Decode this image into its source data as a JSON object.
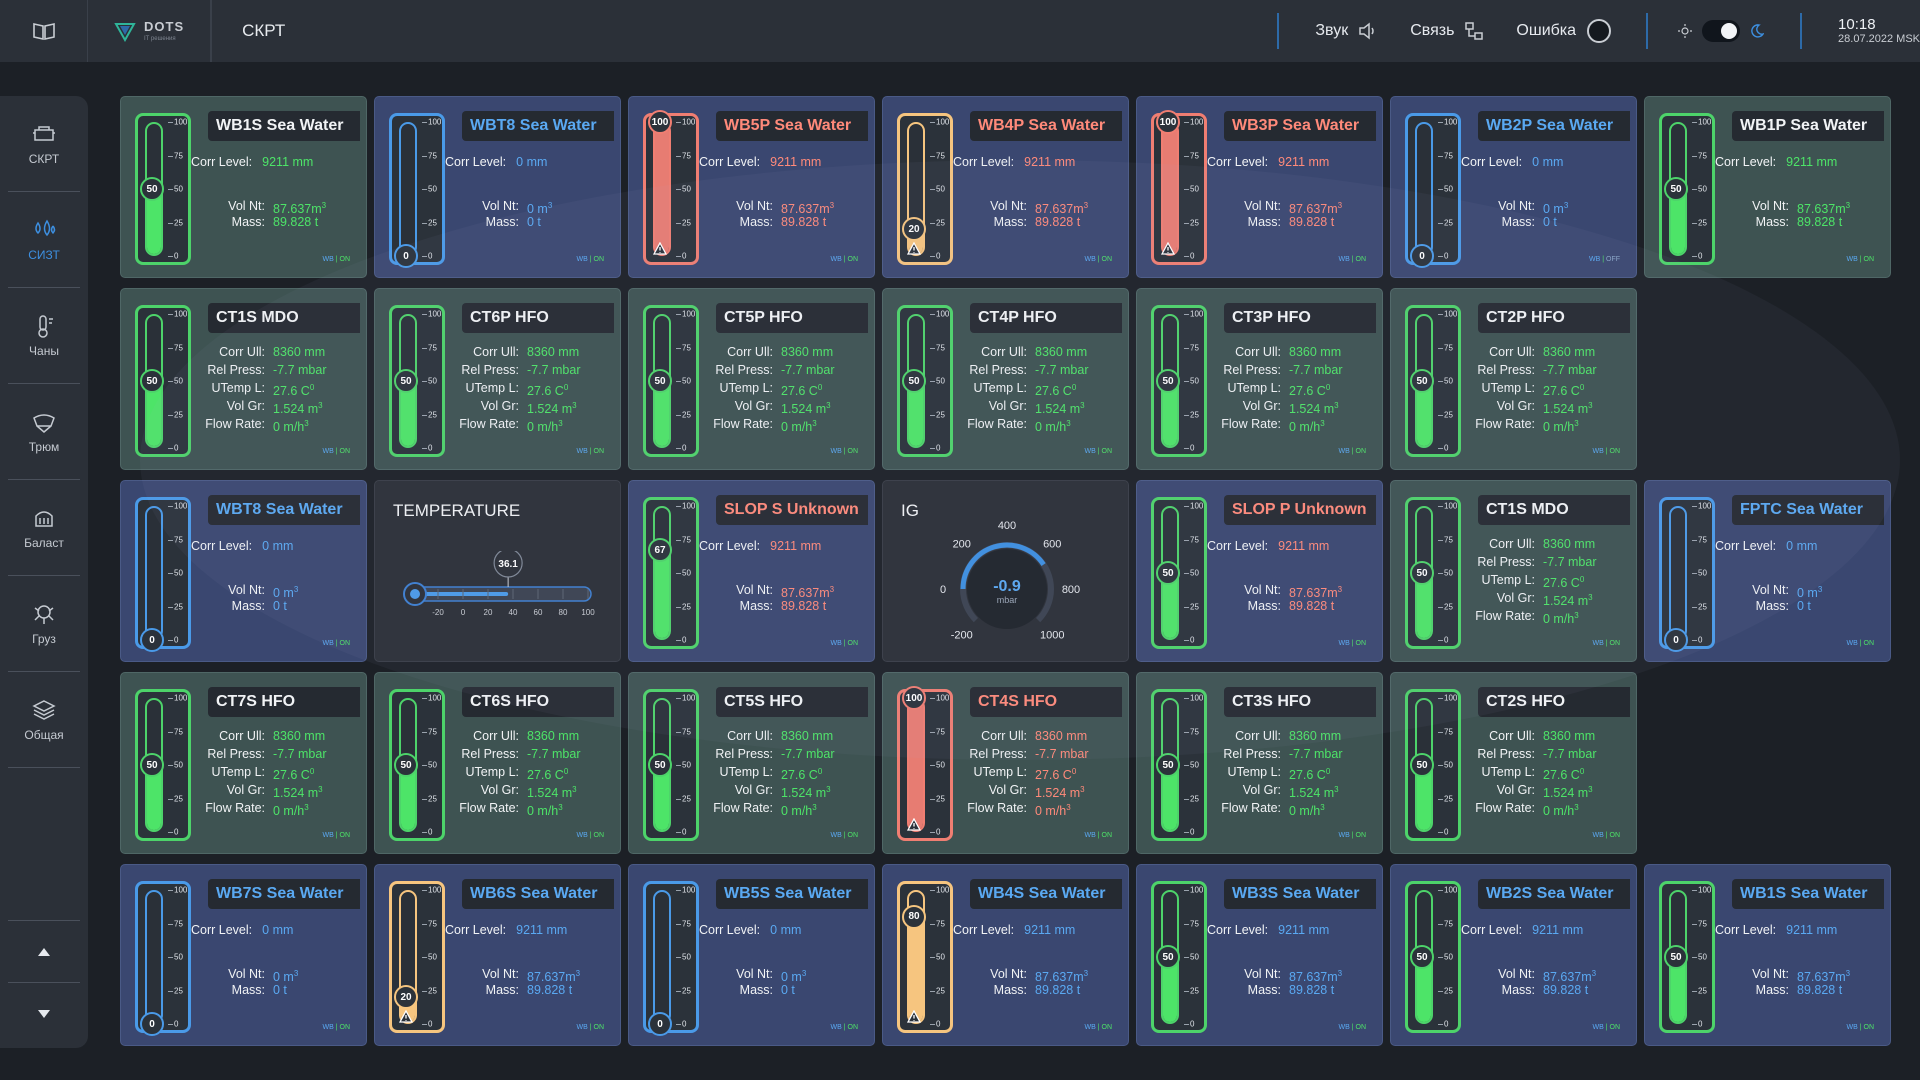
{
  "app": {
    "logo_name": "DOTS",
    "logo_sub": "IT решения",
    "title": "СКРТ"
  },
  "status": {
    "sound": "Звук",
    "link": "Связь",
    "error": "Ошибка"
  },
  "clock": {
    "time": "10:18",
    "date": "28.07.2022 MSK"
  },
  "nav": [
    {
      "label": "СКРТ",
      "icon": "boiler-icon"
    },
    {
      "label": "СИЗТ",
      "icon": "droplets-icon"
    },
    {
      "label": "Чаны",
      "icon": "tank-temp-icon"
    },
    {
      "label": "Трюм",
      "icon": "hold-icon"
    },
    {
      "label": "Баласт",
      "icon": "ballast-icon"
    },
    {
      "label": "Груз",
      "icon": "cargo-icon"
    },
    {
      "label": "Общая",
      "icon": "layers-icon"
    }
  ],
  "labels": {
    "corr": "Corr Level:",
    "ull": "Corr Ull:",
    "rel": "Rel Press:",
    "utemp": "UTemp L:",
    "volgr": "Vol Gr:",
    "flow": "Flow Rate:",
    "volnt": "Vol Nt:",
    "mass": "Mass:",
    "wb": "WB",
    "on": "ON",
    "off": "OFF"
  },
  "colors": {
    "green": "#4de468",
    "blue": "#5aa9f2",
    "red": "#ff8a7a",
    "amber": "#f6c57f"
  },
  "rows": [
    [
      {
        "kind": "sea",
        "title": "WB1S Sea Water",
        "level": 50,
        "corr": "9211 mm",
        "volnt": "87.637m",
        "volnt_sup": "3",
        "mass": "89.828 t",
        "status": "ON",
        "theme": "green",
        "gauge": "green"
      },
      {
        "kind": "sea",
        "title": "WBT8 Sea Water",
        "level": 0,
        "corr": "0 mm",
        "volnt": "0 m",
        "volnt_sup": "3",
        "mass": "0 t",
        "status": "ON",
        "theme": "blue",
        "gauge": "blue"
      },
      {
        "kind": "sea",
        "title": "WB5P Sea Water",
        "level": 100,
        "corr": "9211 mm",
        "volnt": "87.637m",
        "volnt_sup": "3",
        "mass": "89.828 t",
        "status": "ON",
        "theme": "alarm",
        "gauge": "red",
        "warn": true
      },
      {
        "kind": "sea",
        "title": "WB4P Sea Water",
        "level": 20,
        "corr": "9211 mm",
        "volnt": "87.637m",
        "volnt_sup": "3",
        "mass": "89.828 t",
        "status": "ON",
        "theme": "alarm",
        "gauge": "amber",
        "warn": true
      },
      {
        "kind": "sea",
        "title": "WB3P Sea Water",
        "level": 100,
        "corr": "9211 mm",
        "volnt": "87.637m",
        "volnt_sup": "3",
        "mass": "89.828 t",
        "status": "ON",
        "theme": "alarm",
        "gauge": "red",
        "warn": true
      },
      {
        "kind": "sea",
        "title": "WB2P Sea Water",
        "level": 0,
        "corr": "0 mm",
        "volnt": "0 m",
        "volnt_sup": "3",
        "mass": "0 t",
        "status": "OFF",
        "theme": "blue",
        "gauge": "blue"
      },
      {
        "kind": "sea",
        "title": "WB1P Sea Water",
        "level": 50,
        "corr": "9211 mm",
        "volnt": "87.637m",
        "volnt_sup": "3",
        "mass": "89.828 t",
        "status": "ON",
        "theme": "green",
        "gauge": "green"
      }
    ],
    [
      {
        "kind": "hfo",
        "title": "CT1S MDO",
        "level": 50,
        "ull": "8360 mm",
        "rel": "-7.7 mbar",
        "utemp": "27.6 C",
        "utemp_sup": "0",
        "volgr": "1.524 m",
        "volgr_sup": "3",
        "flow": "0 m/h",
        "flow_sup": "3",
        "status": "ON",
        "theme": "green",
        "gauge": "green"
      },
      {
        "kind": "hfo",
        "title": "CT6P HFO",
        "level": 50,
        "ull": "8360 mm",
        "rel": "-7.7 mbar",
        "utemp": "27.6 C",
        "utemp_sup": "0",
        "volgr": "1.524 m",
        "volgr_sup": "3",
        "flow": "0 m/h",
        "flow_sup": "3",
        "status": "ON",
        "theme": "green",
        "gauge": "green"
      },
      {
        "kind": "hfo",
        "title": "CT5P HFO",
        "level": 50,
        "ull": "8360 mm",
        "rel": "-7.7 mbar",
        "utemp": "27.6 C",
        "utemp_sup": "0",
        "volgr": "1.524 m",
        "volgr_sup": "3",
        "flow": "0 m/h",
        "flow_sup": "3",
        "status": "ON",
        "theme": "green",
        "gauge": "green"
      },
      {
        "kind": "hfo",
        "title": "CT4P HFO",
        "level": 50,
        "ull": "8360 mm",
        "rel": "-7.7 mbar",
        "utemp": "27.6 C",
        "utemp_sup": "0",
        "volgr": "1.524 m",
        "volgr_sup": "3",
        "flow": "0 m/h",
        "flow_sup": "3",
        "status": "ON",
        "theme": "green",
        "gauge": "green"
      },
      {
        "kind": "hfo",
        "title": "CT3P HFO",
        "level": 50,
        "ull": "8360 mm",
        "rel": "-7.7 mbar",
        "utemp": "27.6 C",
        "utemp_sup": "0",
        "volgr": "1.524 m",
        "volgr_sup": "3",
        "flow": "0 m/h",
        "flow_sup": "3",
        "status": "ON",
        "theme": "green",
        "gauge": "green"
      },
      {
        "kind": "hfo",
        "title": "CT2P HFO",
        "level": 50,
        "ull": "8360 mm",
        "rel": "-7.7 mbar",
        "utemp": "27.6 C",
        "utemp_sup": "0",
        "volgr": "1.524 m",
        "volgr_sup": "3",
        "flow": "0 m/h",
        "flow_sup": "3",
        "status": "ON",
        "theme": "green",
        "gauge": "green"
      }
    ],
    [
      {
        "kind": "sea",
        "title": "WBT8 Sea Water",
        "level": 0,
        "corr": "0 mm",
        "volnt": "0 m",
        "volnt_sup": "3",
        "mass": "0 t",
        "status": "ON",
        "theme": "blue",
        "gauge": "blue"
      },
      {
        "kind": "temp",
        "title": "TEMPERATURE",
        "value": "36.1",
        "value_num": 36.1,
        "ticks": [
          "-20",
          "0",
          "20",
          "40",
          "60",
          "80",
          "100"
        ]
      },
      {
        "kind": "sea",
        "title": "SLOP S Unknown",
        "level": 67,
        "corr": "9211 mm",
        "volnt": "87.637m",
        "volnt_sup": "3",
        "mass": "89.828 t",
        "status": "ON",
        "theme": "alarm",
        "gauge": "green"
      },
      {
        "kind": "ig",
        "title": "IG",
        "value": "-0.9",
        "unit": "mbar",
        "value_num": -0.9,
        "scale": [
          "-200",
          "0",
          "200",
          "400",
          "600",
          "800",
          "1000"
        ]
      },
      {
        "kind": "sea",
        "title": "SLOP P Unknown",
        "level": 50,
        "corr": "9211 mm",
        "volnt": "87.637m",
        "volnt_sup": "3",
        "mass": "89.828 t",
        "status": "ON",
        "theme": "alarm",
        "gauge": "green"
      },
      {
        "kind": "hfo",
        "title": "CT1S MDO",
        "level": 50,
        "ull": "8360 mm",
        "rel": "-7.7 mbar",
        "utemp": "27.6 C",
        "utemp_sup": "0",
        "volgr": "1.524 m",
        "volgr_sup": "3",
        "flow": "0 m/h",
        "flow_sup": "3",
        "status": "ON",
        "theme": "green",
        "gauge": "green"
      },
      {
        "kind": "sea",
        "title": "FPTC Sea Water",
        "level": 0,
        "corr": "0 mm",
        "volnt": "0 m",
        "volnt_sup": "3",
        "mass": "0 t",
        "status": "ON",
        "theme": "blue",
        "gauge": "blue"
      }
    ],
    [
      {
        "kind": "hfo",
        "title": "CT7S HFO",
        "level": 50,
        "ull": "8360 mm",
        "rel": "-7.7 mbar",
        "utemp": "27.6 C",
        "utemp_sup": "0",
        "volgr": "1.524 m",
        "volgr_sup": "3",
        "flow": "0 m/h",
        "flow_sup": "3",
        "status": "ON",
        "theme": "green",
        "gauge": "green"
      },
      {
        "kind": "hfo",
        "title": "CT6S HFO",
        "level": 50,
        "ull": "8360 mm",
        "rel": "-7.7 mbar",
        "utemp": "27.6 C",
        "utemp_sup": "0",
        "volgr": "1.524 m",
        "volgr_sup": "3",
        "flow": "0 m/h",
        "flow_sup": "3",
        "status": "ON",
        "theme": "green",
        "gauge": "green"
      },
      {
        "kind": "hfo",
        "title": "CT5S HFO",
        "level": 50,
        "ull": "8360 mm",
        "rel": "-7.7 mbar",
        "utemp": "27.6 C",
        "utemp_sup": "0",
        "volgr": "1.524 m",
        "volgr_sup": "3",
        "flow": "0 m/h",
        "flow_sup": "3",
        "status": "ON",
        "theme": "green",
        "gauge": "green"
      },
      {
        "kind": "hfo",
        "title": "CT4S HFO",
        "level": 100,
        "ull": "8360 mm",
        "rel": "-7.7 mbar",
        "utemp": "27.6 C",
        "utemp_sup": "0",
        "volgr": "1.524 m",
        "volgr_sup": "3",
        "flow": "0 m/h",
        "flow_sup": "3",
        "status": "ON",
        "theme": "alarm",
        "gauge": "red",
        "warn": true
      },
      {
        "kind": "hfo",
        "title": "CT3S HFO",
        "level": 50,
        "ull": "8360 mm",
        "rel": "-7.7 mbar",
        "utemp": "27.6 C",
        "utemp_sup": "0",
        "volgr": "1.524 m",
        "volgr_sup": "3",
        "flow": "0 m/h",
        "flow_sup": "3",
        "status": "ON",
        "theme": "green",
        "gauge": "green"
      },
      {
        "kind": "hfo",
        "title": "CT2S HFO",
        "level": 50,
        "ull": "8360 mm",
        "rel": "-7.7 mbar",
        "utemp": "27.6 C",
        "utemp_sup": "0",
        "volgr": "1.524 m",
        "volgr_sup": "3",
        "flow": "0 m/h",
        "flow_sup": "3",
        "status": "ON",
        "theme": "green",
        "gauge": "green"
      }
    ],
    [
      {
        "kind": "sea",
        "title": "WB7S Sea Water",
        "level": 0,
        "corr": "0 mm",
        "volnt": "0 m",
        "volnt_sup": "3",
        "mass": "0 t",
        "status": "ON",
        "theme": "blue",
        "gauge": "blue"
      },
      {
        "kind": "sea",
        "title": "WB6S Sea Water",
        "level": 20,
        "corr": "9211 mm",
        "volnt": "87.637m",
        "volnt_sup": "3",
        "mass": "89.828 t",
        "status": "ON",
        "theme": "blue",
        "gauge": "amber",
        "warn": true
      },
      {
        "kind": "sea",
        "title": "WB5S Sea Water",
        "level": 0,
        "corr": "0 mm",
        "volnt": "0 m",
        "volnt_sup": "3",
        "mass": "0 t",
        "status": "ON",
        "theme": "blue",
        "gauge": "blue"
      },
      {
        "kind": "sea",
        "title": "WB4S Sea Water",
        "level": 80,
        "corr": "9211 mm",
        "volnt": "87.637m",
        "volnt_sup": "3",
        "mass": "89.828 t",
        "status": "ON",
        "theme": "blue",
        "gauge": "amber",
        "warn": true
      },
      {
        "kind": "sea",
        "title": "WB3S Sea Water",
        "level": 50,
        "corr": "9211 mm",
        "volnt": "87.637m",
        "volnt_sup": "3",
        "mass": "89.828 t",
        "status": "ON",
        "theme": "blue",
        "gauge": "green"
      },
      {
        "kind": "sea",
        "title": "WB2S Sea Water",
        "level": 50,
        "corr": "9211 mm",
        "volnt": "87.637m",
        "volnt_sup": "3",
        "mass": "89.828 t",
        "status": "ON",
        "theme": "blue",
        "gauge": "green"
      },
      {
        "kind": "sea",
        "title": "WB1S Sea Water",
        "level": 50,
        "corr": "9211 mm",
        "volnt": "87.637m",
        "volnt_sup": "3",
        "mass": "89.828 t",
        "status": "ON",
        "theme": "blue",
        "gauge": "green"
      }
    ]
  ]
}
